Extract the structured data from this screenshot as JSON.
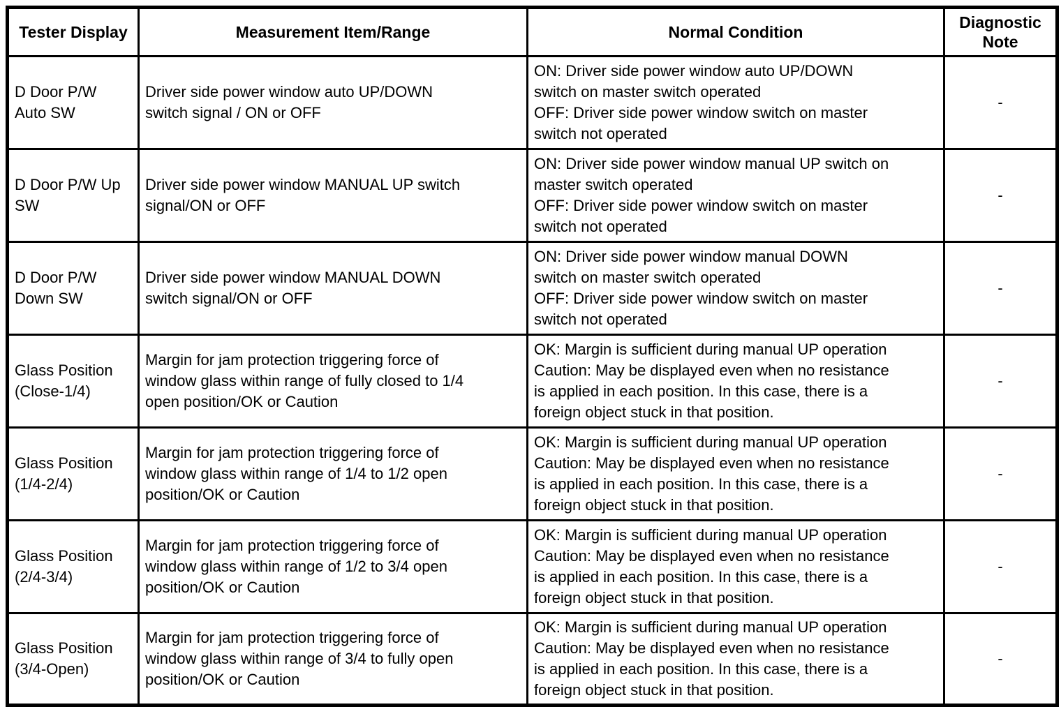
{
  "table": {
    "headers": {
      "tester_display": "Tester Display",
      "measurement": "Measurement Item/Range",
      "condition": "Normal Condition",
      "note": "Diagnostic\nNote"
    },
    "rows": [
      {
        "tester_display": "D Door P/W\nAuto SW",
        "measurement": "Driver side power window auto UP/DOWN\nswitch signal / ON or OFF",
        "condition": "ON: Driver side power window auto UP/DOWN\nswitch on master switch operated\nOFF: Driver side power window switch on master\nswitch not operated",
        "note": "-"
      },
      {
        "tester_display": "D Door P/W Up\nSW",
        "measurement": "Driver side power window MANUAL UP switch\nsignal/ON or OFF",
        "condition": "ON: Driver side power window manual UP switch on\nmaster switch operated\nOFF: Driver side power window switch on master\nswitch not operated",
        "note": "-"
      },
      {
        "tester_display": "D Door P/W\nDown SW",
        "measurement": "Driver side power window MANUAL DOWN\nswitch signal/ON or OFF",
        "condition": "ON: Driver side power window manual DOWN\nswitch on master switch operated\nOFF: Driver side power window switch on master\nswitch not operated",
        "note": "-"
      },
      {
        "tester_display": "Glass Position\n(Close-1/4)",
        "measurement": "Margin for jam protection triggering force of\nwindow glass within range of fully closed to 1/4\nopen position/OK or Caution",
        "condition": "OK: Margin is sufficient during manual UP operation\nCaution: May be displayed even when no resistance\nis applied in each position. In this case, there is a\nforeign object stuck in that position.",
        "note": "-"
      },
      {
        "tester_display": "Glass Position\n(1/4-2/4)",
        "measurement": "Margin for jam protection triggering force of\nwindow glass within range of 1/4 to 1/2 open\nposition/OK or Caution",
        "condition": "OK: Margin is sufficient during manual UP operation\nCaution: May be displayed even when no resistance\nis applied in each position. In this case, there is a\nforeign object stuck in that position.",
        "note": "-"
      },
      {
        "tester_display": "Glass Position\n(2/4-3/4)",
        "measurement": "Margin for jam protection triggering force of\nwindow glass within range of 1/2 to 3/4 open\nposition/OK or Caution",
        "condition": "OK: Margin is sufficient during manual UP operation\nCaution: May be displayed even when no resistance\nis applied in each position. In this case, there is a\nforeign object stuck in that position.",
        "note": "-"
      },
      {
        "tester_display": "Glass Position\n(3/4-Open)",
        "measurement": "Margin for jam protection triggering force of\nwindow glass within range of 3/4 to fully open\nposition/OK or Caution",
        "condition": "OK: Margin is sufficient during manual UP operation\nCaution: May be displayed even when no resistance\nis applied in each position. In this case, there is a\nforeign object stuck in that position.",
        "note": "-"
      }
    ]
  },
  "colors": {
    "border": "#000000",
    "background": "#ffffff",
    "text": "#000000"
  }
}
